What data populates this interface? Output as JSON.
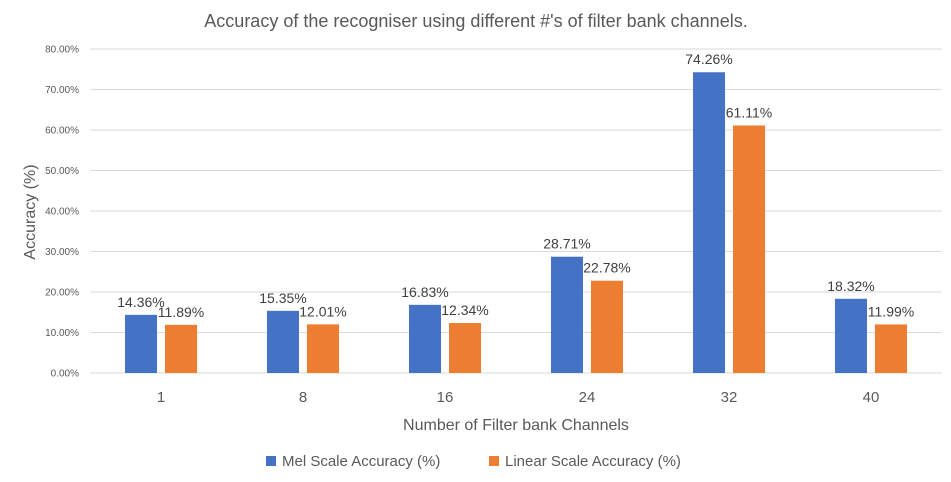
{
  "chart_data": {
    "type": "bar",
    "title": "Accuracy of the recogniser using different #'s of filter bank channels.",
    "xlabel": "Number of Filter bank Channels",
    "ylabel": "Accuracy (%)",
    "categories": [
      "1",
      "8",
      "16",
      "24",
      "32",
      "40"
    ],
    "ylim": [
      0,
      80
    ],
    "yticks": [
      "0.00%",
      "10.00%",
      "20.00%",
      "30.00%",
      "40.00%",
      "50.00%",
      "60.00%",
      "70.00%",
      "80.00%"
    ],
    "grid": true,
    "legend_position": "bottom",
    "series": [
      {
        "name": "Mel Scale Accuracy (%)",
        "color": "#4472C4",
        "values": [
          14.36,
          15.35,
          16.83,
          28.71,
          74.26,
          18.32
        ],
        "labels": [
          "14.36%",
          "15.35%",
          "16.83%",
          "28.71%",
          "74.26%",
          "18.32%"
        ]
      },
      {
        "name": "Linear Scale Accuracy (%)",
        "color": "#ED7D31",
        "values": [
          11.89,
          12.01,
          12.34,
          22.78,
          61.11,
          11.99
        ],
        "labels": [
          "11.89%",
          "12.01%",
          "12.34%",
          "22.78%",
          "61.11%",
          "11.99%"
        ]
      }
    ]
  }
}
